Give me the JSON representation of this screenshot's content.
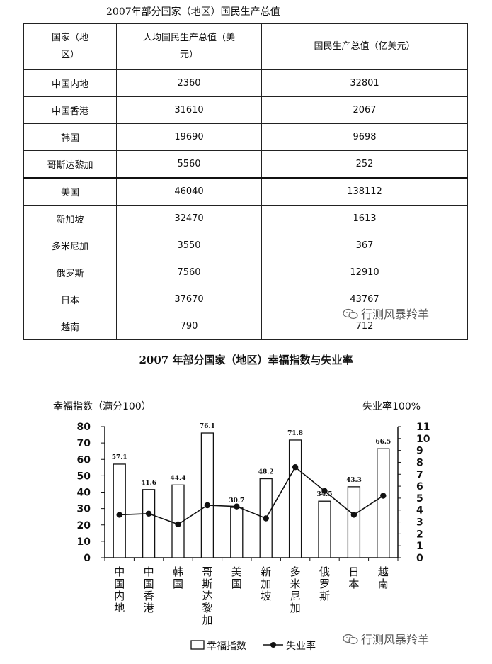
{
  "table": {
    "title": "2007年部分国家（地区）国民生产总值",
    "headers": [
      "国家（地区）",
      "人均国民生产总值（美元）",
      "国民生产总值（亿美元）"
    ],
    "header_lines": [
      [
        "国家（地",
        "区）"
      ],
      [
        "人均国民生产总值（美",
        "元）"
      ],
      [
        "国民生产总值（亿美元）"
      ]
    ],
    "rows": [
      {
        "name": "中国内地",
        "per_capita": "2360",
        "total": "32801"
      },
      {
        "name": "中国香港",
        "per_capita": "31610",
        "total": "2067"
      },
      {
        "name": "韩国",
        "per_capita": "19690",
        "total": "9698"
      },
      {
        "name": "哥斯达黎加",
        "per_capita": "5560",
        "total": "252"
      },
      {
        "name": "美国",
        "per_capita": "46040",
        "total": "138112"
      },
      {
        "name": "新加坡",
        "per_capita": "32470",
        "total": "1613"
      },
      {
        "name": "多米尼加",
        "per_capita": "3550",
        "total": "367"
      },
      {
        "name": "俄罗斯",
        "per_capita": "7560",
        "total": "12910"
      },
      {
        "name": "日本",
        "per_capita": "37670",
        "total": "43767"
      },
      {
        "name": "越南",
        "per_capita": "790",
        "total": "712"
      }
    ]
  },
  "watermark": {
    "text": "行测风暴羚羊",
    "icon": "wechat-icon"
  },
  "chart_data": {
    "type": "bar",
    "title": "2007 年部分国家（地区）幸福指数与失业率",
    "ylabel": "幸福指数（满分100）",
    "y2label": "失业率100%",
    "ylim": [
      0,
      80
    ],
    "y2lim": [
      0,
      11
    ],
    "yticks": [
      0,
      10,
      20,
      30,
      40,
      50,
      60,
      70,
      80
    ],
    "y2ticks": [
      0,
      1,
      2,
      3,
      4,
      5,
      6,
      7,
      8,
      9,
      10,
      11
    ],
    "categories": [
      "中国内地",
      "中国香港",
      "韩国",
      "哥斯达黎加",
      "美国",
      "新加坡",
      "多米尼加",
      "俄罗斯",
      "日本",
      "越南"
    ],
    "series": [
      {
        "name": "幸福指数",
        "type": "bar",
        "axis": "left",
        "values": [
          57.1,
          41.6,
          44.4,
          76.1,
          30.7,
          48.2,
          71.8,
          34.5,
          43.3,
          66.5
        ]
      },
      {
        "name": "失业率",
        "type": "line",
        "axis": "right",
        "values": [
          3.6,
          3.7,
          2.8,
          4.4,
          4.3,
          3.3,
          7.6,
          5.6,
          3.6,
          5.2
        ]
      }
    ],
    "legend": {
      "position": "bottom"
    }
  }
}
